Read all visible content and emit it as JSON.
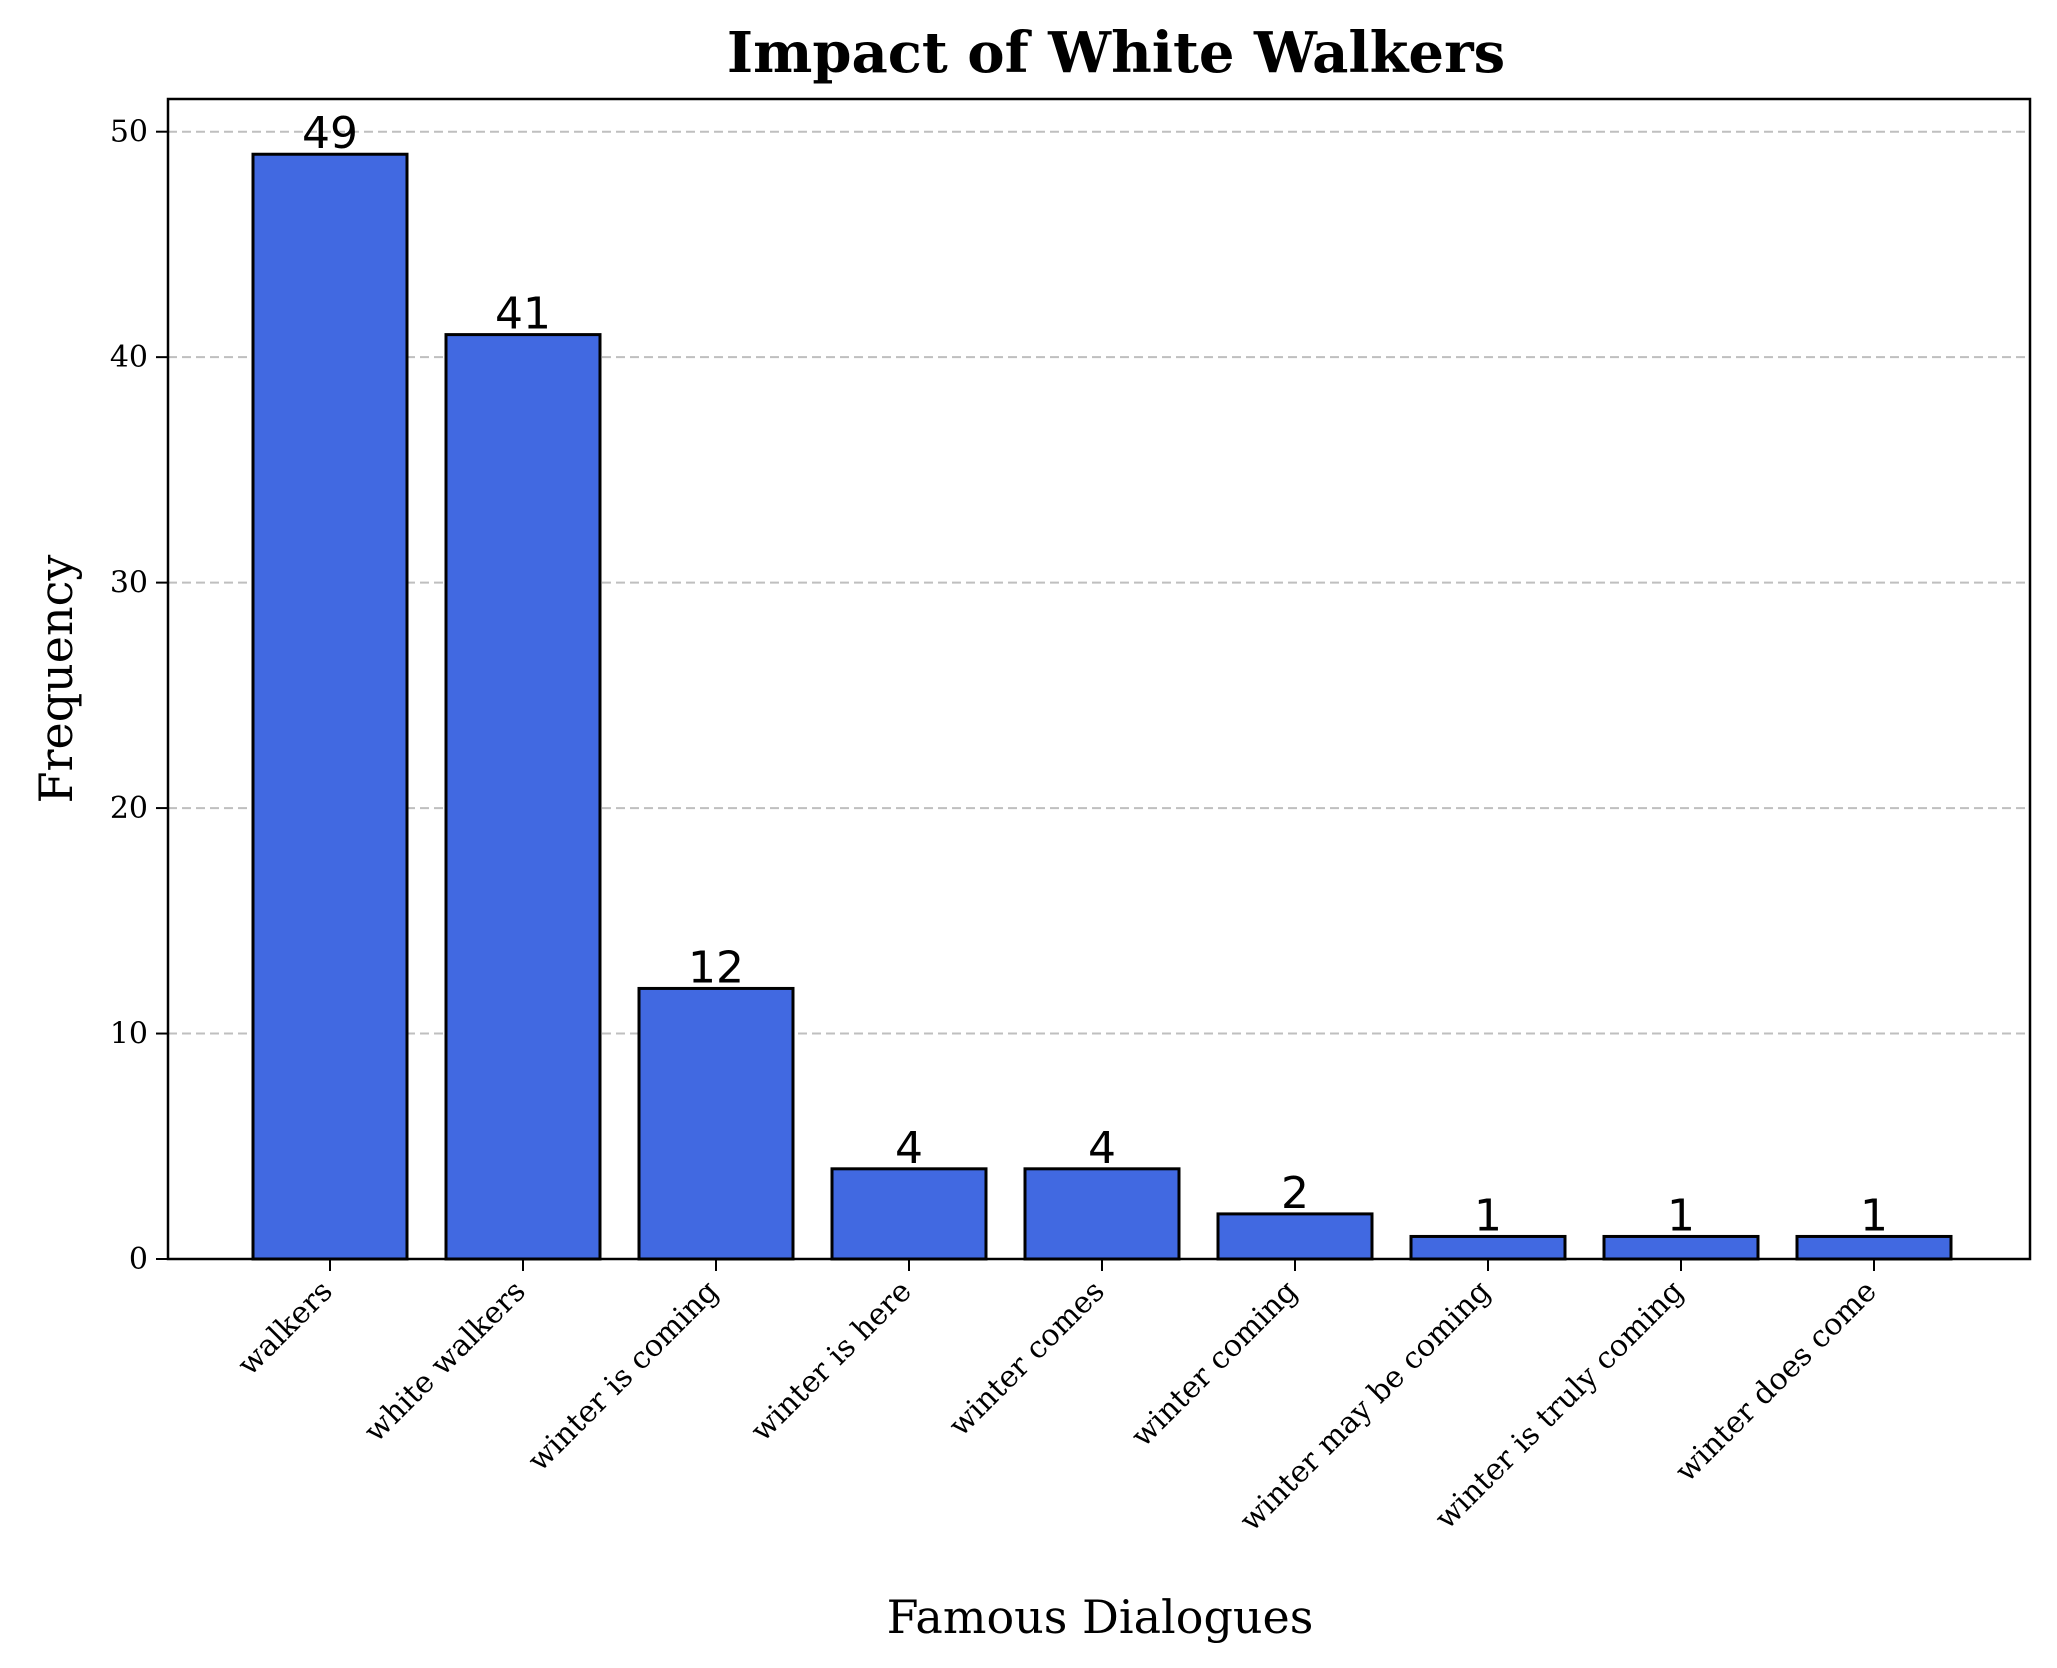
{
  "chart_data": {
    "type": "bar",
    "title": "Impact of White Walkers",
    "xlabel": "Famous Dialogues",
    "ylabel": "Frequency",
    "categories": [
      "walkers",
      "white walkers",
      "winter is coming",
      "winter is here",
      "winter comes",
      "winter coming",
      "winter may be coming",
      "winter is truly coming",
      "winter does come"
    ],
    "values": [
      49,
      41,
      12,
      4,
      4,
      2,
      1,
      1,
      1
    ],
    "ylim": [
      0,
      51.45
    ],
    "yticks": [
      0,
      10,
      20,
      30,
      40,
      50
    ],
    "grid": "y-dashed",
    "legend": "none",
    "bar_color": "#4169e1",
    "edge_color": "#000000",
    "grid_color": "#bfbfbf"
  }
}
